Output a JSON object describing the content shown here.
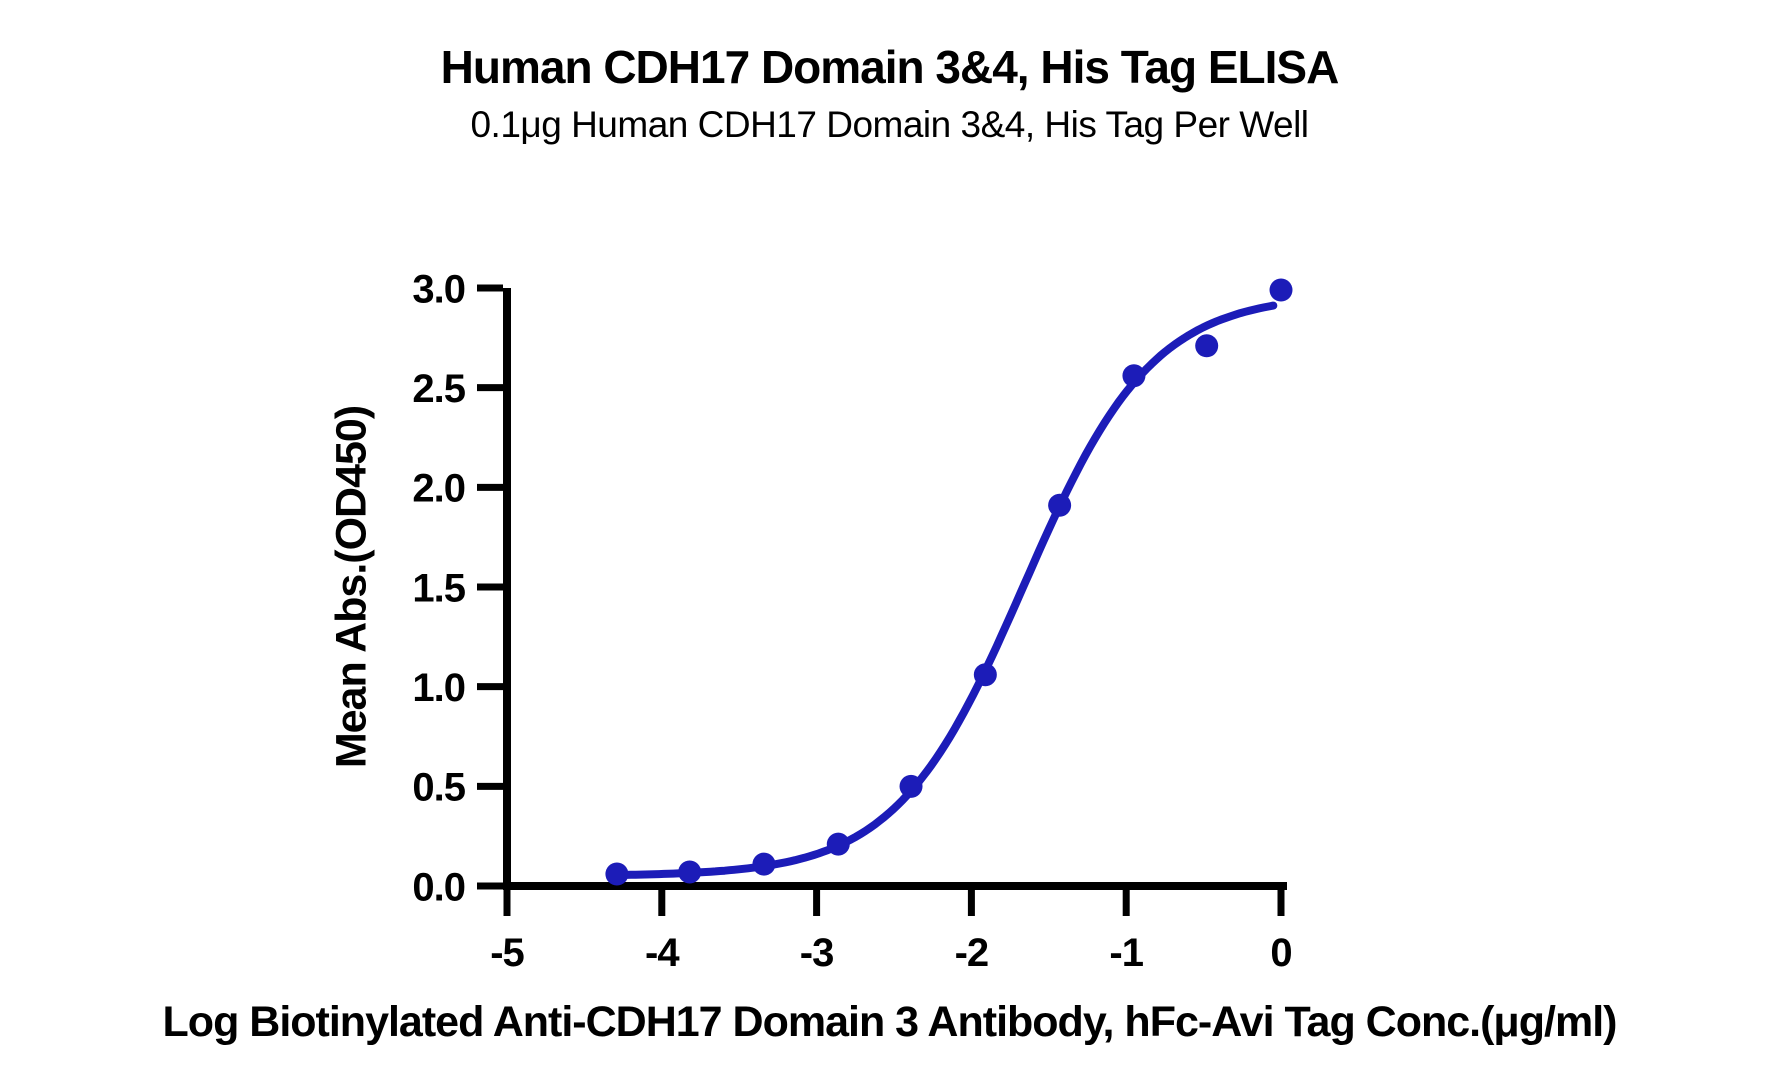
{
  "header": {
    "title": "Human CDH17 Domain 3&4, His Tag ELISA",
    "subtitle": "0.1μg Human CDH17 Domain 3&4, His Tag Per Well"
  },
  "chart_data": {
    "type": "scatter",
    "title": "Human CDH17 Domain 3&4, His Tag ELISA",
    "subtitle": "0.1μg Human CDH17 Domain 3&4, His Tag Per Well",
    "xlabel": "Log Biotinylated Anti-CDH17 Domain 3 Antibody, hFc-Avi Tag Conc.(μg/ml)",
    "ylabel": "Mean Abs.(OD450)",
    "xlim": [
      -5,
      0
    ],
    "ylim": [
      0,
      3
    ],
    "x_ticks": [
      -5,
      -4,
      -3,
      -2,
      -1,
      0
    ],
    "x_tick_labels": [
      "-5",
      "-4",
      "-3",
      "-2",
      "-1",
      "0"
    ],
    "y_ticks": [
      0,
      0.5,
      1,
      1.5,
      2,
      2.5,
      3
    ],
    "y_tick_labels": [
      "0.0",
      "0.5",
      "1.0",
      "1.5",
      "2.0",
      "2.5",
      "3.0"
    ],
    "grid": false,
    "legend": null,
    "points": {
      "x": [
        -4.29,
        -3.82,
        -3.34,
        -2.86,
        -2.39,
        -1.91,
        -1.43,
        -0.95,
        -0.48,
        0
      ],
      "y": [
        0.06,
        0.07,
        0.11,
        0.21,
        0.5,
        1.06,
        1.91,
        2.56,
        2.71,
        2.99
      ]
    },
    "fit_curve": {
      "model": "4PL",
      "bottom": 0.05,
      "top": 2.97,
      "log_ec50": -1.66,
      "hill_slope": 1.05,
      "x_range": [
        -4.29,
        -0.05
      ]
    },
    "colors": {
      "series": "#1c1cb8",
      "axis": "#000000",
      "text": "#000000"
    }
  }
}
